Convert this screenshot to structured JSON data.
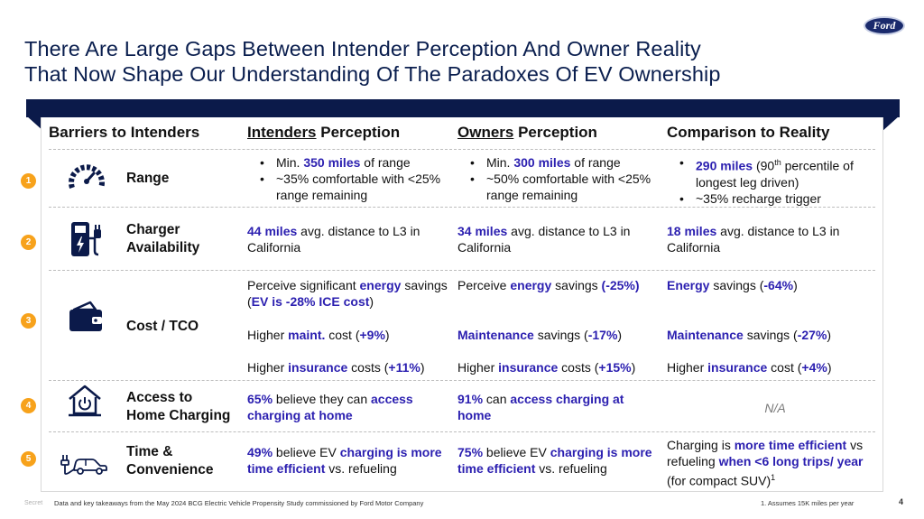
{
  "title_line1": "There Are Large Gaps Between Intender Perception And Owner Reality",
  "title_line2": "That Now Shape Our Understanding Of The Paradoxes Of EV Ownership",
  "logo_text": "Ford",
  "headers": {
    "barriers": "Barriers to Intenders",
    "intenders_u": "Intenders",
    "intenders_rest": " Perception",
    "owners_u": "Owners",
    "owners_rest": " Perception",
    "reality": "Comparison to Reality"
  },
  "rows": {
    "range": {
      "num": "1",
      "label": "Range",
      "icon": "speedometer-icon",
      "int_b1_a": "Min. ",
      "int_b1_b": "350 miles",
      "int_b1_c": " of range",
      "int_b2": "~35% comfortable with <25% range remaining",
      "own_b1_a": "Min. ",
      "own_b1_b": "300 miles",
      "own_b1_c": " of range",
      "own_b2": "~50% comfortable with <25% range remaining",
      "real_b1_a": "290 miles",
      "real_b1_b": " (90",
      "real_b1_sup": "th",
      "real_b1_c": " percentile of longest leg driven)",
      "real_b2": "~35% recharge trigger"
    },
    "charger": {
      "num": "2",
      "label_1": "Charger",
      "label_2": "Availability",
      "icon": "charging-station-icon",
      "int_a": "44 miles",
      "int_b": " avg. distance to L3 in California",
      "own_a": "34 miles",
      "own_b": " avg. distance to L3 in California",
      "real_a": "18 miles",
      "real_b": " avg. distance to L3 in California"
    },
    "cost": {
      "num": "3",
      "label": "Cost / TCO",
      "icon": "wallet-icon",
      "int1_a": "Perceive significant ",
      "int1_b": "energy",
      "int1_c": " savings (",
      "int1_d": "EV is -28% ICE cost",
      "int1_e": ")",
      "int2_a": "Higher ",
      "int2_b": "maint.",
      "int2_c": " cost (",
      "int2_d": "+9%",
      "int2_e": ")",
      "int3_a": "Higher ",
      "int3_b": "insurance",
      "int3_c": " costs (",
      "int3_d": "+11%",
      "int3_e": ")",
      "own1_a": "Perceive ",
      "own1_b": "energy",
      "own1_c": " savings ",
      "own1_d": "(-25%)",
      "own2_a": "Maintenance",
      "own2_b": " savings (",
      "own2_c": "-17%",
      "own2_d": ")",
      "own3_a": "Higher ",
      "own3_b": "insurance",
      "own3_c": " costs (",
      "own3_d": "+15%",
      "own3_e": ")",
      "real1_a": "Energy",
      "real1_b": " savings (",
      "real1_c": "-64%",
      "real1_d": ")",
      "real2_a": "Maintenance",
      "real2_b": " savings (",
      "real2_c": "-27%",
      "real2_d": ")",
      "real3_a": "Higher ",
      "real3_b": "insurance",
      "real3_c": " cost (",
      "real3_d": "+4%",
      "real3_e": ")"
    },
    "home": {
      "num": "4",
      "label_1": "Access to",
      "label_2": "Home Charging",
      "icon": "home-power-icon",
      "int_a": "65%",
      "int_b": " believe they can ",
      "int_c": "access charging at home",
      "own_a": "91%",
      "own_b": " can ",
      "own_c": "access charging at home",
      "real": "N/A"
    },
    "time": {
      "num": "5",
      "label_1": "Time &",
      "label_2": "Convenience",
      "icon": "car-plug-icon",
      "int_a": "49%",
      "int_b": " believe EV ",
      "int_c": "charging is more time efficient",
      "int_d": " vs. refueling",
      "own_a": "75%",
      "own_b": " believe EV ",
      "own_c": "charging is more time efficient",
      "own_d": " vs. refueling",
      "real_a": "Charging is ",
      "real_b": "more time efficient",
      "real_c": " vs refueling ",
      "real_d": "when <6 long trips/ year",
      "real_e": " (for compact SUV)",
      "real_sup": "1"
    }
  },
  "footer": {
    "secret": "Secret",
    "source": "Data and key takeaways from the May 2024 BCG Electric Vehicle Propensity Study commissioned by Ford Motor Company",
    "note": "1. Assumes 15K miles per year",
    "page": "4"
  },
  "colors": {
    "navy": "#0b1a4a",
    "accent": "#2b1fb0",
    "badge": "#f7a21b"
  }
}
